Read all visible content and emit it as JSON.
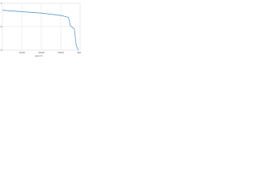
{
  "chart_data": {
    "type": "line",
    "x_label": "epoch",
    "x": [
      0,
      1000,
      2000,
      3000,
      3400,
      3500,
      3700,
      3800,
      3900
    ],
    "series": [
      {
        "color": "#5b9bd5",
        "values": [
          0.85,
          0.82,
          0.79,
          0.74,
          0.7,
          0.52,
          0.45,
          0.1,
          0
        ]
      }
    ],
    "xlim": [
      0,
      4000
    ],
    "xticks": [
      1000,
      2000,
      3000,
      4000
    ],
    "ylim": [
      0,
      1
    ],
    "yticks": [
      0,
      0.5,
      1
    ],
    "grid": true
  }
}
